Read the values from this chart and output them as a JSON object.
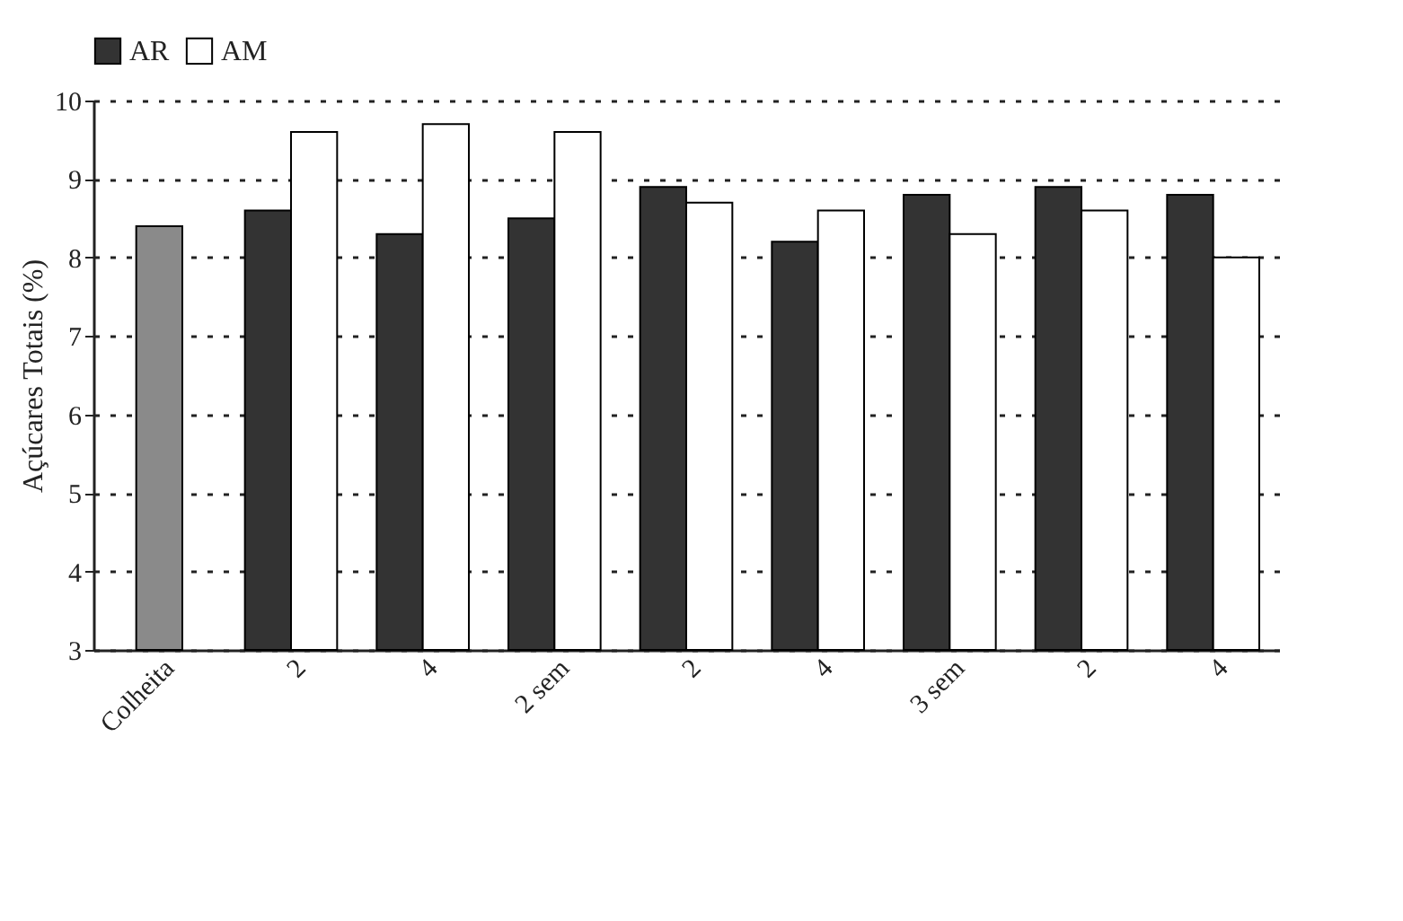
{
  "chart_data": {
    "type": "bar",
    "ylabel": "Açúcares Totais (%)",
    "categories": [
      "Colheita",
      "2",
      "4",
      "2 sem",
      "2",
      "4",
      "3 sem",
      "2",
      "4"
    ],
    "series": [
      {
        "color": "#8a8a8a",
        "values": [
          8.4,
          null,
          null,
          null,
          null,
          null,
          null,
          null,
          null
        ]
      },
      {
        "name": "AR",
        "color": "#333333",
        "values": [
          null,
          8.6,
          8.3,
          8.5,
          8.9,
          8.2,
          8.8,
          8.9,
          8.8
        ]
      },
      {
        "name": "AM",
        "color": "#ffffff",
        "values": [
          null,
          9.6,
          9.7,
          9.6,
          8.7,
          8.6,
          8.3,
          8.6,
          8.0
        ]
      }
    ],
    "ylim": [
      3,
      10
    ],
    "yticks": [
      3,
      4,
      5,
      6,
      7,
      8,
      9,
      10
    ],
    "grid": "y",
    "legend": "top"
  }
}
